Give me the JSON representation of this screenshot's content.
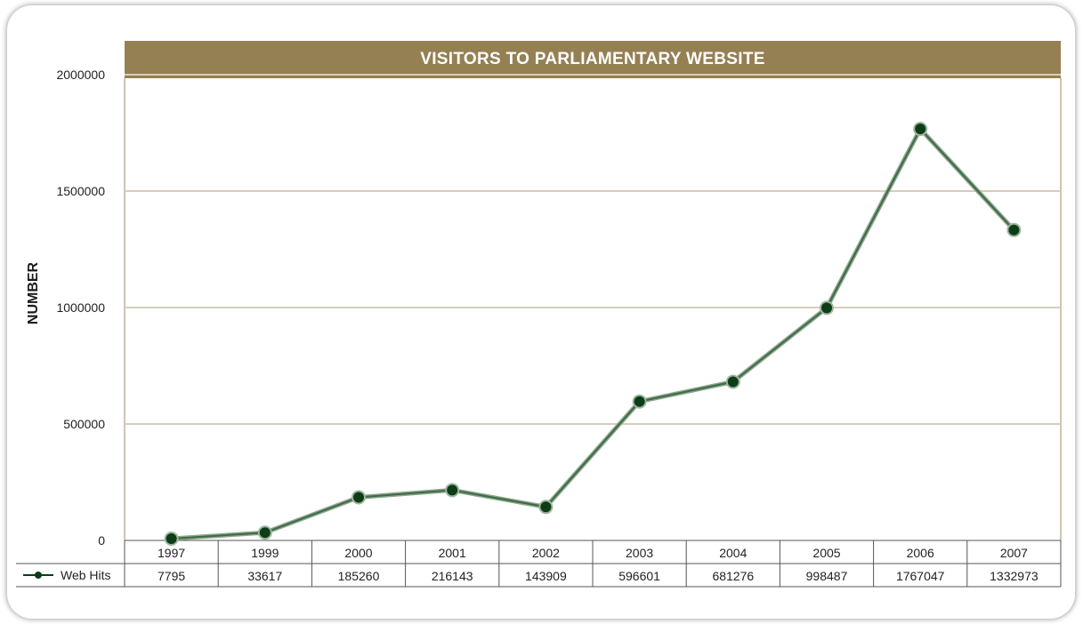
{
  "chart_data": {
    "type": "line",
    "title": "VISITORS TO PARLIAMENTARY WEBSITE",
    "xlabel": "",
    "ylabel": "NUMBER",
    "ylim": [
      0,
      2000000
    ],
    "yticks": [
      "0",
      "500000",
      "1000000",
      "1500000",
      "2000000"
    ],
    "grid": true,
    "categories": [
      "1997",
      "1999",
      "2000",
      "2001",
      "2002",
      "2003",
      "2004",
      "2005",
      "2006",
      "2007"
    ],
    "series": [
      {
        "name": "Web Hits",
        "color": "#0d3d17",
        "values": [
          7795,
          33617,
          185260,
          216143,
          143909,
          596601,
          681276,
          998487,
          1767047,
          1332973
        ],
        "value_labels": [
          "7795",
          "33617",
          "185260",
          "216143",
          "143909",
          "596601",
          "681276",
          "998487",
          "1767047",
          "1332973"
        ]
      }
    ],
    "legend": "bottom-left data table"
  }
}
